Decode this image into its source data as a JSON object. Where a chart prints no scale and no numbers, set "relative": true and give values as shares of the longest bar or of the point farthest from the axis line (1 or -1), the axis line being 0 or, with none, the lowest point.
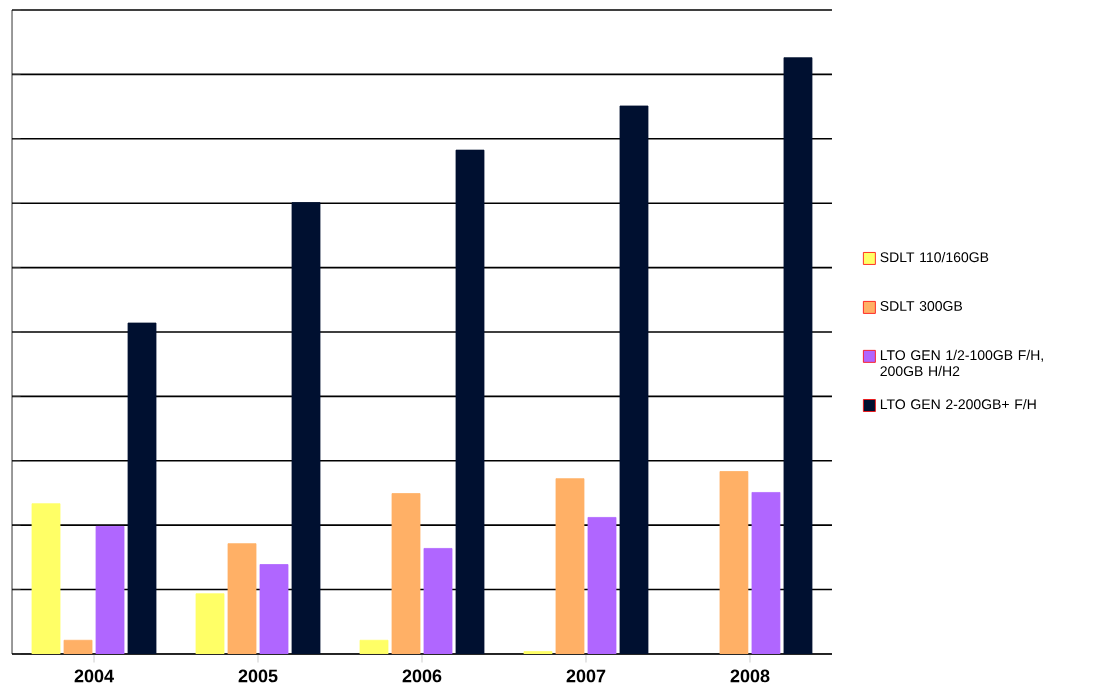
{
  "chart_data": {
    "type": "bar",
    "relative": true,
    "grid": "y",
    "legend": "right",
    "categories": [
      "2004",
      "2005",
      "2006",
      "2007",
      "2008"
    ],
    "series": [
      {
        "name": "SDLT 110/160GB",
        "color": "#ffff66",
        "values": [
          0.252,
          0.101,
          0.023,
          0.004,
          null
        ]
      },
      {
        "name": "SDLT 300GB",
        "color": "#ffb066",
        "values": [
          0.023,
          0.185,
          0.269,
          0.294,
          0.306
        ]
      },
      {
        "name": "LTO GEN 1/2-100GB F/H, 200GB H/H2",
        "color": "#b066ff",
        "values": [
          0.214,
          0.15,
          0.177,
          0.229,
          0.271
        ]
      },
      {
        "name": "LTO GEN 2-200GB+ F/H",
        "color": "#001030",
        "values": [
          0.555,
          0.757,
          0.845,
          0.919,
          1
        ]
      }
    ]
  }
}
